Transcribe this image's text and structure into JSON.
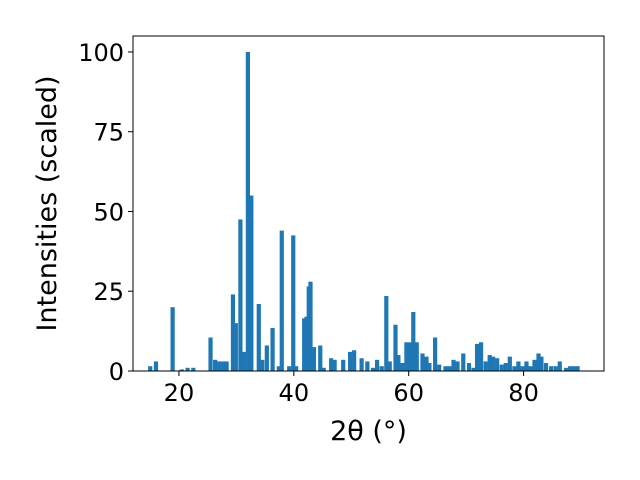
{
  "chart_data": {
    "type": "bar",
    "title": "",
    "xlabel": "2θ (°)",
    "ylabel": "Intensities (scaled)",
    "xlim": [
      12,
      94
    ],
    "ylim": [
      0,
      105
    ],
    "xticks": [
      20,
      40,
      60,
      80
    ],
    "yticks": [
      0,
      25,
      50,
      75,
      100
    ],
    "grid": false,
    "legend": "none",
    "bar_color": "#1f77b4",
    "x": [
      15.0,
      16.0,
      18.9,
      20.5,
      21.5,
      22.5,
      25.5,
      26.3,
      27.0,
      27.7,
      28.3,
      29.4,
      29.9,
      30.7,
      31.3,
      32.0,
      32.6,
      33.9,
      34.5,
      35.3,
      36.3,
      37.4,
      37.9,
      39.2,
      39.9,
      40.4,
      41.8,
      42.2,
      42.6,
      42.9,
      43.5,
      44.6,
      45.2,
      46.5,
      47.1,
      48.6,
      49.8,
      50.5,
      51.8,
      52.8,
      53.8,
      54.5,
      55.3,
      56.1,
      56.7,
      57.7,
      58.2,
      58.9,
      59.6,
      60.3,
      60.8,
      61.4,
      62.4,
      63.1,
      63.6,
      64.6,
      65.3,
      66.4,
      67.1,
      67.8,
      68.5,
      69.5,
      70.5,
      71.3,
      71.9,
      72.6,
      73.4,
      74.1,
      74.7,
      75.4,
      76.2,
      76.9,
      77.6,
      78.4,
      79.1,
      79.8,
      80.5,
      81.2,
      81.9,
      82.6,
      83.1,
      83.9,
      84.8,
      85.6,
      86.3,
      87.4,
      88.1,
      88.8,
      89.4
    ],
    "values": [
      1.5,
      3.0,
      20.0,
      0.5,
      1.0,
      1.0,
      10.5,
      3.5,
      3.0,
      3.0,
      3.0,
      24.0,
      15.0,
      47.5,
      6.0,
      100.0,
      55.0,
      21.0,
      3.5,
      8.0,
      13.5,
      1.5,
      44.0,
      1.5,
      42.5,
      1.5,
      16.5,
      17.0,
      26.5,
      28.0,
      7.5,
      8.0,
      1.0,
      4.0,
      3.5,
      3.5,
      6.0,
      6.5,
      4.0,
      3.0,
      1.0,
      3.5,
      1.5,
      23.5,
      3.0,
      14.5,
      5.0,
      2.5,
      9.0,
      9.0,
      18.5,
      9.0,
      5.5,
      4.5,
      2.5,
      10.5,
      2.0,
      1.5,
      1.5,
      3.5,
      3.0,
      5.5,
      2.5,
      1.0,
      8.5,
      9.0,
      3.0,
      5.0,
      4.5,
      4.0,
      2.0,
      2.5,
      4.5,
      1.5,
      3.0,
      1.5,
      3.0,
      1.5,
      3.5,
      5.5,
      4.5,
      2.5,
      1.5,
      1.5,
      3.0,
      1.0,
      1.5,
      1.5,
      1.5
    ]
  }
}
